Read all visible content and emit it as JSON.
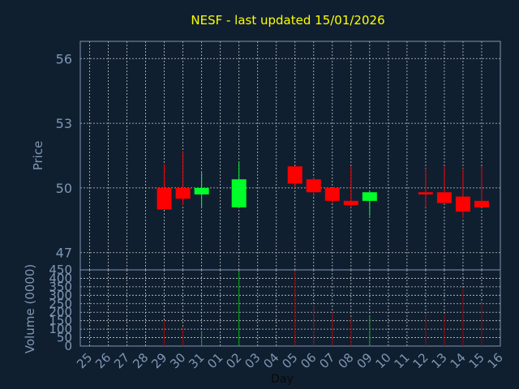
{
  "chart_data": [
    {
      "type": "candlestick",
      "title": "NESF - last updated 15/01/2026",
      "ylabel": "Price",
      "ylim": [
        46.2,
        56.8
      ],
      "yticks": [
        "47",
        "50",
        "53",
        "56"
      ],
      "grid": true,
      "candles": [
        {
          "day": "29",
          "open": 50.0,
          "close": 49.0,
          "high": 51.1,
          "low": 49.0
        },
        {
          "day": "30",
          "open": 50.0,
          "close": 49.5,
          "high": 51.7,
          "low": 49.2
        },
        {
          "day": "31",
          "open": 49.7,
          "close": 50.0,
          "high": 50.7,
          "low": 49.1
        },
        {
          "day": "02",
          "open": 49.1,
          "close": 50.4,
          "high": 51.2,
          "low": 49.1
        },
        {
          "day": "05",
          "open": 51.0,
          "close": 50.2,
          "high": 51.0,
          "low": 50.0
        },
        {
          "day": "06",
          "open": 50.4,
          "close": 49.8,
          "high": 50.5,
          "low": 49.6
        },
        {
          "day": "07",
          "open": 50.0,
          "close": 49.4,
          "high": 50.0,
          "low": 49.3
        },
        {
          "day": "08",
          "open": 49.4,
          "close": 49.2,
          "high": 51.0,
          "low": 49.1
        },
        {
          "day": "09",
          "open": 49.4,
          "close": 49.8,
          "high": 49.8,
          "low": 48.7
        },
        {
          "day": "12",
          "open": 49.8,
          "close": 49.7,
          "high": 50.9,
          "low": 49.1
        },
        {
          "day": "13",
          "open": 49.8,
          "close": 49.3,
          "high": 51.0,
          "low": 49.3
        },
        {
          "day": "14",
          "open": 49.6,
          "close": 48.9,
          "high": 50.9,
          "low": 48.6
        },
        {
          "day": "15",
          "open": 49.4,
          "close": 49.1,
          "high": 51.0,
          "low": 49.1
        }
      ]
    },
    {
      "type": "bar",
      "ylabel": "Volume (0000)",
      "xlabel": "Day",
      "ylim": [
        0,
        450
      ],
      "yticks": [
        "0",
        "50",
        "100",
        "150",
        "200",
        "250",
        "300",
        "350",
        "400",
        "450"
      ],
      "grid": true,
      "categories": [
        "25",
        "26",
        "27",
        "28",
        "29",
        "30",
        "31",
        "01",
        "02",
        "03",
        "04",
        "05",
        "06",
        "07",
        "08",
        "09",
        "10",
        "11",
        "12",
        "13",
        "14",
        "15",
        "16"
      ],
      "values": [
        0,
        0,
        0,
        0,
        150,
        115,
        90,
        0,
        440,
        0,
        0,
        445,
        240,
        200,
        170,
        180,
        0,
        0,
        180,
        185,
        340,
        255,
        0
      ]
    }
  ],
  "colors": {
    "background": "#0f1f30",
    "axis": "#7f96b2",
    "grid": "#c8c8c8",
    "title": "#ffff00",
    "up": "#00ff28",
    "down": "#ff0000",
    "volume_up": "#00b000",
    "volume_down": "#a00000"
  }
}
